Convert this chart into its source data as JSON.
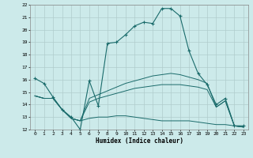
{
  "xlabel": "Humidex (Indice chaleur)",
  "bg_color": "#cceaea",
  "grid_color": "#b0cccc",
  "line_color": "#1a6b6b",
  "x_ticks": [
    0,
    1,
    2,
    3,
    4,
    5,
    6,
    7,
    8,
    9,
    10,
    11,
    12,
    13,
    14,
    15,
    16,
    17,
    18,
    19,
    20,
    21,
    22,
    23
  ],
  "ylim": [
    12,
    22
  ],
  "xlim": [
    -0.5,
    23.5
  ],
  "y_ticks": [
    12,
    13,
    14,
    15,
    16,
    17,
    18,
    19,
    20,
    21,
    22
  ],
  "line1_x": [
    0,
    1,
    2,
    3,
    4,
    5,
    6,
    7,
    8,
    9,
    10,
    11,
    12,
    13,
    14,
    15,
    16,
    17,
    18,
    19,
    20,
    21,
    22,
    23
  ],
  "line1_y": [
    16.1,
    15.7,
    14.6,
    13.6,
    13.0,
    12.0,
    15.9,
    13.9,
    18.9,
    19.0,
    19.6,
    20.3,
    20.6,
    20.5,
    21.7,
    21.7,
    21.1,
    18.3,
    16.5,
    15.6,
    14.0,
    14.5,
    12.3,
    12.3
  ],
  "line2_x": [
    0,
    1,
    2,
    3,
    4,
    5,
    6,
    7,
    8,
    9,
    10,
    11,
    12,
    13,
    14,
    15,
    16,
    17,
    18,
    19,
    20,
    21,
    22,
    23
  ],
  "line2_y": [
    14.7,
    14.5,
    14.5,
    13.6,
    12.9,
    12.7,
    12.9,
    13.0,
    13.0,
    13.1,
    13.1,
    13.0,
    12.9,
    12.8,
    12.7,
    12.7,
    12.7,
    12.7,
    12.6,
    12.5,
    12.4,
    12.4,
    12.3,
    12.2
  ],
  "line3_x": [
    0,
    1,
    2,
    3,
    4,
    5,
    6,
    7,
    8,
    9,
    10,
    11,
    12,
    13,
    14,
    15,
    16,
    17,
    18,
    19,
    20,
    21,
    22,
    23
  ],
  "line3_y": [
    14.7,
    14.5,
    14.5,
    13.6,
    12.9,
    12.7,
    14.2,
    14.5,
    14.7,
    14.9,
    15.1,
    15.3,
    15.4,
    15.5,
    15.6,
    15.6,
    15.6,
    15.5,
    15.4,
    15.2,
    13.8,
    14.3,
    12.3,
    12.2
  ],
  "line4_x": [
    0,
    1,
    2,
    3,
    4,
    5,
    6,
    7,
    8,
    9,
    10,
    11,
    12,
    13,
    14,
    15,
    16,
    17,
    18,
    19,
    20,
    21,
    22,
    23
  ],
  "line4_y": [
    14.7,
    14.5,
    14.5,
    13.6,
    12.9,
    12.7,
    14.5,
    14.8,
    15.1,
    15.4,
    15.7,
    15.9,
    16.1,
    16.3,
    16.4,
    16.5,
    16.4,
    16.2,
    16.0,
    15.7,
    13.8,
    14.3,
    12.3,
    12.2
  ]
}
